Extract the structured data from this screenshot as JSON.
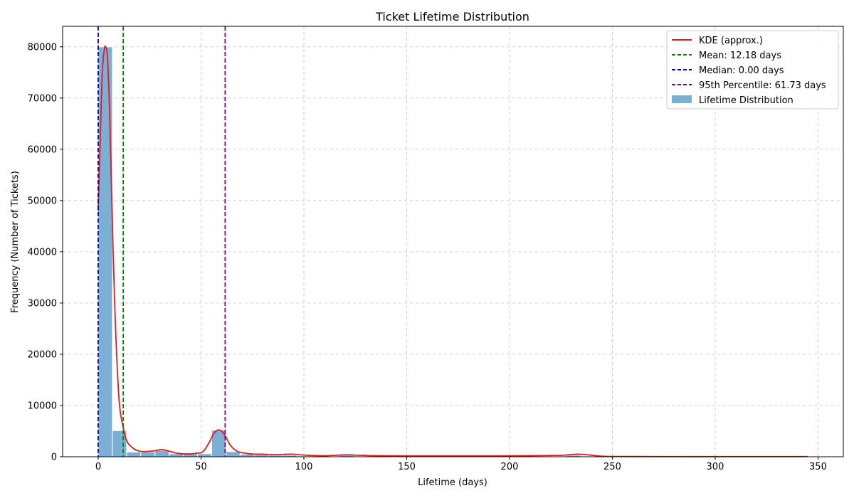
{
  "chart_data": {
    "type": "bar",
    "title": "Ticket Lifetime Distribution",
    "xlabel": "Lifetime (days)",
    "ylabel": "Frequency (Number of Tickets)",
    "xlim": [
      -17.3,
      362.3
    ],
    "ylim": [
      0,
      84000
    ],
    "xticks": [
      0,
      50,
      100,
      150,
      200,
      250,
      300,
      350
    ],
    "yticks": [
      0,
      10000,
      20000,
      30000,
      40000,
      50000,
      60000,
      70000,
      80000
    ],
    "grid": true,
    "legend_position": "top-right",
    "histogram": {
      "name": "Lifetime Distribution",
      "color": "#7bafd4",
      "bin_width": 6.9,
      "bins_start": [
        0,
        6.9,
        13.8,
        20.7,
        27.6,
        34.5,
        41.4,
        48.3,
        55.2,
        62.1,
        69,
        75.9,
        82.8,
        89.7,
        96.6,
        103.5,
        110.4,
        117.3,
        124.2,
        131.1,
        138,
        144.9,
        151.8,
        158.7,
        165.6,
        172.5,
        179.4,
        186.3,
        193.2,
        200.1,
        207,
        213.9,
        220.8,
        227.7,
        234.6,
        241.5,
        248.4,
        255.3,
        262.2,
        269.1,
        276,
        282.9,
        289.8,
        296.7,
        303.6,
        310.5,
        317.4,
        324.3,
        331.2,
        338.1
      ],
      "values": [
        80000,
        5100,
        900,
        900,
        1200,
        600,
        600,
        600,
        5200,
        1000,
        500,
        400,
        300,
        300,
        150,
        100,
        100,
        300,
        100,
        50,
        50,
        50,
        50,
        50,
        50,
        50,
        50,
        50,
        50,
        50,
        50,
        50,
        50,
        300,
        100,
        50,
        50,
        30,
        30,
        30,
        30,
        30,
        30,
        30,
        30,
        30,
        30,
        30,
        30,
        30
      ]
    },
    "kde": {
      "name": "KDE (approx.)",
      "color": "#e31a1c",
      "x": [
        0,
        1,
        2,
        3,
        3.6,
        4.5,
        5.5,
        6.5,
        8,
        10,
        12,
        14,
        16,
        18,
        20,
        22,
        25,
        28,
        31,
        34,
        37,
        40,
        44,
        48,
        51,
        54,
        56,
        58,
        60,
        62,
        64,
        66,
        68,
        70,
        73,
        76,
        80,
        85,
        90,
        94,
        98,
        103,
        110,
        116,
        121,
        126,
        135,
        150,
        170,
        190,
        210,
        220,
        226,
        230,
        233,
        237,
        241,
        245,
        250,
        260,
        280,
        300,
        320,
        345
      ],
      "y": [
        48000,
        62000,
        75000,
        79500,
        80000,
        78000,
        68000,
        52000,
        30000,
        12000,
        6000,
        3000,
        2000,
        1400,
        1100,
        1000,
        1050,
        1200,
        1400,
        1150,
        800,
        600,
        550,
        700,
        1000,
        2800,
        4400,
        5200,
        5000,
        3900,
        2400,
        1500,
        1000,
        800,
        600,
        500,
        500,
        400,
        450,
        500,
        380,
        250,
        200,
        300,
        380,
        300,
        200,
        150,
        150,
        150,
        200,
        250,
        300,
        420,
        500,
        420,
        250,
        100,
        50,
        40,
        30,
        30,
        30,
        30
      ]
    },
    "reference_lines": [
      {
        "label": "Mean: 12.18 days",
        "x": 12.18,
        "color": "#008000"
      },
      {
        "label": "Median: 0.00 days",
        "x": 0.0,
        "color": "#0000cd"
      },
      {
        "label": "95th Percentile: 61.73 days",
        "x": 61.73,
        "color": "#800080"
      }
    ]
  }
}
